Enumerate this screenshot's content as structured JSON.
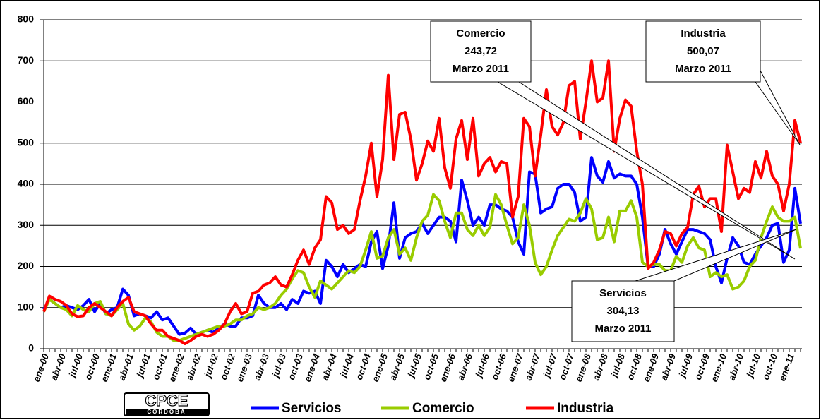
{
  "chart_data": {
    "type": "line",
    "categories": [
      "ene-00",
      null,
      null,
      "abr-00",
      null,
      null,
      "jul-00",
      null,
      null,
      "oct-00",
      null,
      null,
      "ene-01",
      null,
      null,
      "abr-01",
      null,
      null,
      "jul-01",
      null,
      null,
      "oct-01",
      null,
      null,
      "ene-02",
      null,
      null,
      "abr-02",
      null,
      null,
      "jul-02",
      null,
      null,
      "oct-02",
      null,
      null,
      "ene-03",
      null,
      null,
      "abr-03",
      null,
      null,
      "jul-03",
      null,
      null,
      "oct-03",
      null,
      null,
      "ene-04",
      null,
      null,
      "abr-04",
      null,
      null,
      "jul-04",
      null,
      null,
      "oct-04",
      null,
      null,
      "ene-05",
      null,
      null,
      "abr-05",
      null,
      null,
      "jul-05",
      null,
      null,
      "oct-05",
      null,
      null,
      "ene-06",
      null,
      null,
      "abr-06",
      null,
      null,
      "jul-06",
      null,
      null,
      "oct-06",
      null,
      null,
      "ene-07",
      null,
      null,
      "abr-07",
      null,
      null,
      "jul-07",
      null,
      null,
      "oct-07",
      null,
      null,
      "ene-08",
      null,
      null,
      "abr-08",
      null,
      null,
      "jul-08",
      null,
      null,
      "oct-08",
      null,
      null,
      "ene-09",
      null,
      null,
      "abr-09",
      null,
      null,
      "jul-09",
      null,
      null,
      "oct-09",
      null,
      null,
      "ene-10",
      null,
      null,
      "abr-10",
      null,
      null,
      "jul-10",
      null,
      null,
      "oct-10",
      null,
      null,
      "ene-11",
      null,
      null
    ],
    "series": [
      {
        "name": "Servicios",
        "color": "#0000ff",
        "values": [
          95,
          120,
          110,
          100,
          105,
          100,
          95,
          105,
          120,
          90,
          110,
          85,
          95,
          100,
          145,
          130,
          80,
          85,
          80,
          75,
          90,
          70,
          75,
          55,
          35,
          38,
          50,
          35,
          40,
          45,
          40,
          50,
          60,
          55,
          55,
          75,
          75,
          80,
          130,
          110,
          100,
          100,
          110,
          95,
          120,
          110,
          140,
          135,
          140,
          110,
          215,
          200,
          175,
          205,
          185,
          195,
          205,
          200,
          260,
          285,
          195,
          250,
          355,
          220,
          270,
          280,
          285,
          305,
          280,
          300,
          320,
          320,
          310,
          260,
          410,
          360,
          300,
          320,
          300,
          350,
          350,
          340,
          335,
          320,
          260,
          230,
          430,
          425,
          330,
          340,
          345,
          390,
          400,
          400,
          380,
          310,
          320,
          465,
          420,
          405,
          455,
          415,
          425,
          420,
          420,
          400,
          320,
          200,
          200,
          230,
          290,
          255,
          230,
          260,
          290,
          290,
          285,
          280,
          265,
          200,
          160,
          220,
          270,
          250,
          210,
          205,
          230,
          250,
          270,
          300,
          305,
          210,
          240,
          390,
          304.13
        ]
      },
      {
        "name": "Comercio",
        "color": "#99cc00",
        "values": [
          90,
          120,
          110,
          100,
          95,
          80,
          105,
          95,
          90,
          110,
          115,
          85,
          80,
          95,
          110,
          60,
          45,
          55,
          75,
          65,
          40,
          30,
          30,
          20,
          20,
          25,
          30,
          35,
          40,
          45,
          50,
          55,
          55,
          60,
          70,
          70,
          80,
          85,
          100,
          95,
          100,
          110,
          130,
          145,
          170,
          190,
          185,
          150,
          125,
          165,
          155,
          145,
          160,
          175,
          190,
          185,
          200,
          240,
          285,
          220,
          225,
          270,
          290,
          230,
          245,
          215,
          270,
          310,
          325,
          375,
          360,
          310,
          270,
          330,
          330,
          290,
          275,
          300,
          275,
          295,
          375,
          350,
          300,
          255,
          270,
          350,
          300,
          210,
          180,
          200,
          240,
          275,
          295,
          315,
          310,
          330,
          365,
          340,
          265,
          270,
          320,
          260,
          335,
          335,
          360,
          320,
          210,
          200,
          205,
          205,
          190,
          190,
          225,
          210,
          250,
          270,
          245,
          240,
          175,
          185,
          175,
          180,
          145,
          150,
          165,
          200,
          215,
          270,
          310,
          345,
          320,
          310,
          310,
          320,
          243.72
        ]
      },
      {
        "name": "Industria",
        "color": "#ff0000",
        "values": [
          90,
          128,
          120,
          115,
          105,
          85,
          78,
          80,
          100,
          110,
          100,
          90,
          80,
          100,
          115,
          125,
          90,
          85,
          80,
          60,
          45,
          45,
          30,
          25,
          20,
          12,
          20,
          30,
          35,
          30,
          35,
          45,
          60,
          90,
          110,
          85,
          90,
          135,
          140,
          155,
          160,
          175,
          155,
          150,
          180,
          215,
          240,
          205,
          245,
          265,
          370,
          355,
          290,
          300,
          280,
          290,
          360,
          420,
          500,
          370,
          460,
          665,
          460,
          570,
          575,
          510,
          410,
          450,
          505,
          480,
          560,
          440,
          390,
          510,
          555,
          460,
          560,
          420,
          450,
          465,
          430,
          455,
          450,
          320,
          370,
          560,
          540,
          420,
          520,
          630,
          540,
          520,
          550,
          640,
          650,
          510,
          600,
          700,
          600,
          610,
          700,
          480,
          560,
          605,
          590,
          480,
          400,
          195,
          210,
          240,
          285,
          280,
          250,
          280,
          295,
          375,
          395,
          345,
          365,
          365,
          285,
          495,
          430,
          365,
          390,
          380,
          455,
          415,
          480,
          420,
          400,
          335,
          400,
          555,
          500.07
        ]
      }
    ],
    "ylim": [
      0,
      800
    ],
    "yticks": [
      0,
      100,
      200,
      300,
      400,
      500,
      600,
      700,
      800
    ],
    "grid": true,
    "annotations": [
      {
        "lines": [
          "Comercio",
          "243,72",
          "Marzo 2011"
        ]
      },
      {
        "lines": [
          "Industria",
          "500,07",
          "Marzo 2011"
        ]
      },
      {
        "lines": [
          "Servicios",
          "304,13",
          "Marzo 2011"
        ]
      }
    ],
    "logo": {
      "text": "CPCE",
      "subtext": "CORDOBA"
    }
  }
}
